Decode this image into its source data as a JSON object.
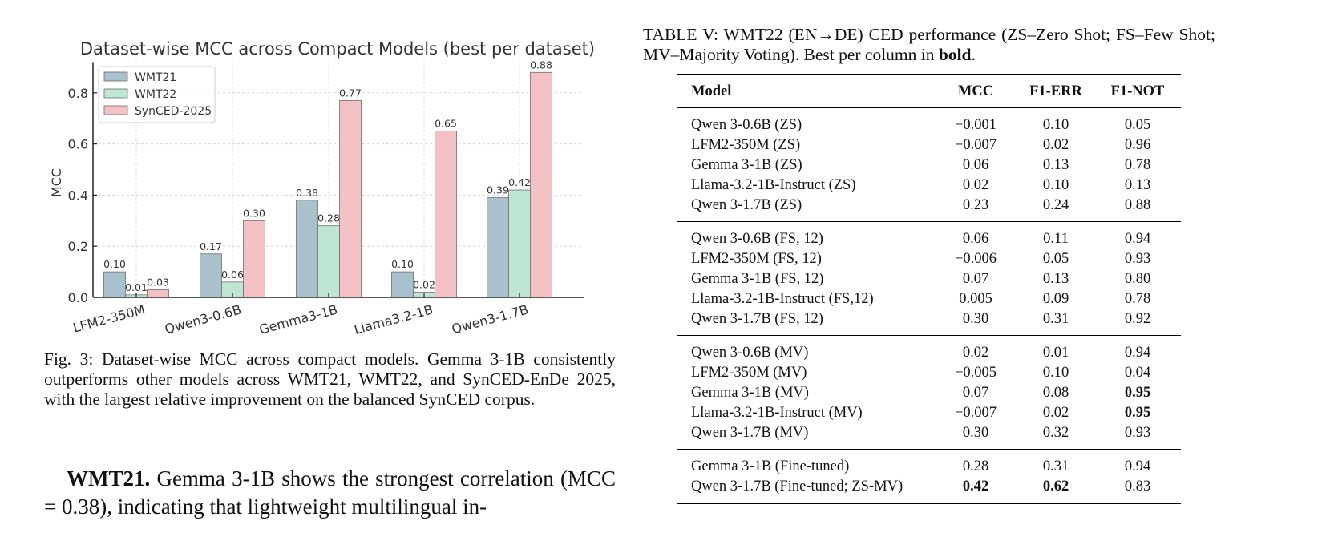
{
  "chart_data": {
    "type": "bar",
    "title": "Dataset-wise MCC across Compact Models (best per dataset)",
    "xlabel": "",
    "ylabel": "MCC",
    "ylim": [
      0,
      0.92
    ],
    "yticks": [
      "0.0",
      "0.2",
      "0.4",
      "0.6",
      "0.8"
    ],
    "ytick_values": [
      0.0,
      0.2,
      0.4,
      0.6,
      0.8
    ],
    "grid": true,
    "legend_position": "upper-left",
    "categories": [
      "LFM2-350M",
      "Qwen3-0.6B",
      "Gemma3-1B",
      "Llama3.2-1B",
      "Qwen3-1.7B"
    ],
    "series": [
      {
        "name": "WMT21",
        "color": "#a9c1cc",
        "values": [
          0.1,
          0.17,
          0.38,
          0.1,
          0.39
        ],
        "labels": [
          "0.10",
          "0.17",
          "0.38",
          "0.10",
          "0.39"
        ]
      },
      {
        "name": "WMT22",
        "color": "#bfe6d2",
        "values": [
          0.01,
          0.06,
          0.28,
          0.02,
          0.42
        ],
        "labels": [
          "0.01",
          "0.06",
          "0.28",
          "0.02",
          "0.42"
        ]
      },
      {
        "name": "SynCED-2025",
        "color": "#f4c2c4",
        "values": [
          0.03,
          0.3,
          0.77,
          0.65,
          0.88
        ],
        "labels": [
          "0.03",
          "0.30",
          "0.77",
          "0.65",
          "0.88"
        ]
      }
    ]
  },
  "figure": {
    "caption": "Fig. 3: Dataset-wise MCC across compact models. Gemma 3-1B consistently outperforms other models across WMT21, WMT22, and SynCED-EnDe 2025, with the largest relative improvement on the balanced SynCED corpus."
  },
  "body": {
    "heading": "WMT21.",
    "text": " Gemma 3-1B shows the strongest correlation (MCC = 0.38), indicating that lightweight multilingual in-"
  },
  "table": {
    "caption_prefix": "TABLE V: WMT22 (EN→DE) CED performance (ZS–Zero Shot; FS–Few Shot; MV–Majority Voting). Best per column in ",
    "caption_bold": "bold",
    "caption_suffix": ".",
    "headers": [
      "Model",
      "MCC",
      "F1-ERR",
      "F1-NOT"
    ],
    "groups": [
      {
        "rows": [
          {
            "model": "Qwen 3-0.6B (ZS)",
            "mcc": "−0.001",
            "f1_err": "0.10",
            "f1_not": "0.05"
          },
          {
            "model": "LFM2-350M (ZS)",
            "mcc": "−0.007",
            "f1_err": "0.02",
            "f1_not": "0.96"
          },
          {
            "model": "Gemma 3-1B (ZS)",
            "mcc": "0.06",
            "f1_err": "0.13",
            "f1_not": "0.78"
          },
          {
            "model": "Llama-3.2-1B-Instruct (ZS)",
            "mcc": "0.02",
            "f1_err": "0.10",
            "f1_not": "0.13"
          },
          {
            "model": "Qwen 3-1.7B (ZS)",
            "mcc": "0.23",
            "f1_err": "0.24",
            "f1_not": "0.88"
          }
        ]
      },
      {
        "rows": [
          {
            "model": "Qwen 3-0.6B (FS, 12)",
            "mcc": "0.06",
            "f1_err": "0.11",
            "f1_not": "0.94"
          },
          {
            "model": "LFM2-350M (FS, 12)",
            "mcc": "−0.006",
            "f1_err": "0.05",
            "f1_not": "0.93"
          },
          {
            "model": "Gemma 3-1B (FS, 12)",
            "mcc": "0.07",
            "f1_err": "0.13",
            "f1_not": "0.80"
          },
          {
            "model": "Llama-3.2-1B-Instruct (FS,12)",
            "mcc": "0.005",
            "f1_err": "0.09",
            "f1_not": "0.78"
          },
          {
            "model": "Qwen 3-1.7B (FS, 12)",
            "mcc": "0.30",
            "f1_err": "0.31",
            "f1_not": "0.92"
          }
        ]
      },
      {
        "rows": [
          {
            "model": "Qwen 3-0.6B (MV)",
            "mcc": "0.02",
            "f1_err": "0.01",
            "f1_not": "0.94"
          },
          {
            "model": "LFM2-350M (MV)",
            "mcc": "−0.005",
            "f1_err": "0.10",
            "f1_not": "0.04"
          },
          {
            "model": "Gemma 3-1B (MV)",
            "mcc": "0.07",
            "f1_err": "0.08",
            "f1_not": "0.95",
            "bold_f1_not": true
          },
          {
            "model": "Llama-3.2-1B-Instruct (MV)",
            "mcc": "−0.007",
            "f1_err": "0.02",
            "f1_not": "0.95",
            "bold_f1_not": true
          },
          {
            "model": "Qwen 3-1.7B (MV)",
            "mcc": "0.30",
            "f1_err": "0.32",
            "f1_not": "0.93"
          }
        ]
      },
      {
        "rows": [
          {
            "model": "Gemma 3-1B (Fine-tuned)",
            "mcc": "0.28",
            "f1_err": "0.31",
            "f1_not": "0.94"
          },
          {
            "model": "Qwen 3-1.7B (Fine-tuned; ZS-MV)",
            "mcc": "0.42",
            "f1_err": "0.62",
            "f1_not": "0.83",
            "bold_mcc": true,
            "bold_f1_err": true
          }
        ]
      }
    ]
  }
}
